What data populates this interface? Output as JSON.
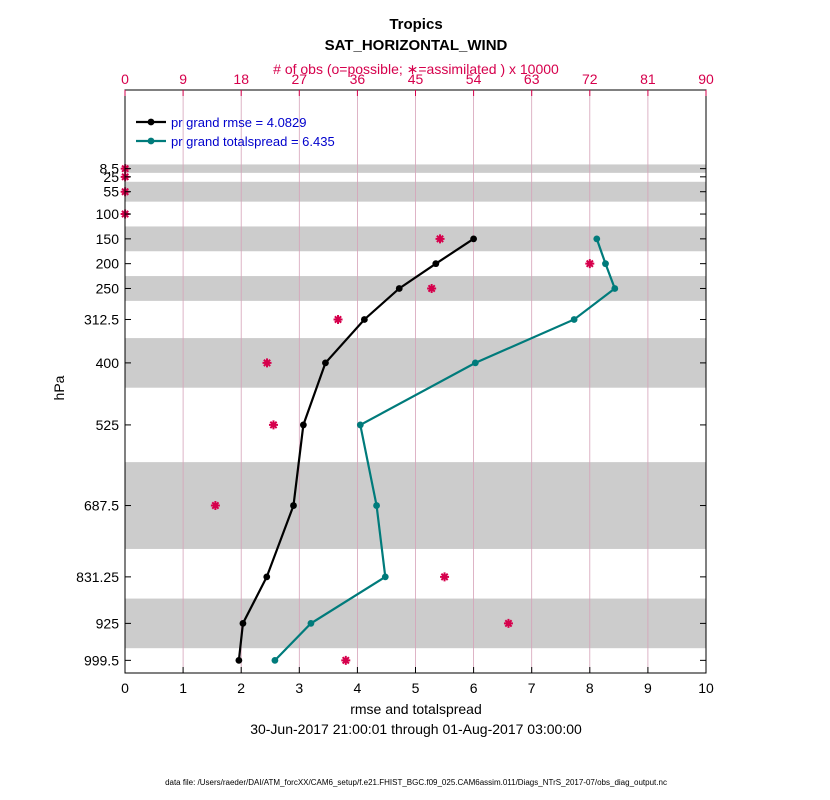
{
  "chart_data": {
    "type": "line",
    "title": "Tropics",
    "subtitle": "SAT_HORIZONTAL_WIND",
    "xlabel": "rmse and totalspread",
    "ylabel": "hPa",
    "date_range": "30-Jun-2017 21:00:01 through 01-Aug-2017 03:00:00",
    "footer": "data file: /Users/raeder/DAI/ATM_forcXX/CAM6_setup/f.e21.FHIST_BGC.f09_025.CAM6assim.011/Diags_NTrS_2017-07/obs_diag_output.nc",
    "top_axis_label": "# of obs (o=possible; ∗=assimilated ) x 10000",
    "xlim": [
      0,
      10
    ],
    "x_ticks": [
      "0",
      "1",
      "2",
      "3",
      "4",
      "5",
      "6",
      "7",
      "8",
      "9",
      "10"
    ],
    "top_xlim": [
      0,
      90
    ],
    "top_ticks": [
      "0",
      "9",
      "18",
      "27",
      "36",
      "45",
      "54",
      "63",
      "72",
      "81",
      "90"
    ],
    "ylim_hpa": [
      1025,
      -150
    ],
    "levels": [
      8.5,
      25,
      55,
      100,
      150,
      200,
      250,
      312.5,
      400,
      525,
      687.5,
      831.25,
      925,
      999.5
    ],
    "level_labels": [
      "8.5",
      "25",
      "55",
      "100",
      "150",
      "200",
      "250",
      "312.5",
      "400",
      "525",
      "687.5",
      "831.25",
      "925",
      "999.5"
    ],
    "layer_bands_hpa": [
      [
        0,
        17
      ],
      [
        35,
        75
      ],
      [
        125,
        175
      ],
      [
        225,
        275
      ],
      [
        350,
        450
      ],
      [
        600,
        775
      ],
      [
        875,
        975
      ]
    ],
    "series": [
      {
        "name": "rmse",
        "legend": "pr grand rmse = 4.0829",
        "color": "#000000",
        "levels": [
          150,
          200,
          250,
          312.5,
          400,
          525,
          687.5,
          831.25,
          925,
          999.5
        ],
        "values": [
          6.0,
          5.35,
          4.72,
          4.12,
          3.45,
          3.07,
          2.9,
          2.44,
          2.03,
          1.96
        ]
      },
      {
        "name": "totalspread",
        "legend": "pr grand totalspread = 6.435",
        "color": "#007b7b",
        "levels": [
          150,
          200,
          250,
          312.5,
          400,
          525,
          687.5,
          831.25,
          925,
          999.5
        ],
        "values": [
          8.12,
          8.27,
          8.43,
          7.73,
          6.03,
          4.05,
          4.33,
          4.48,
          3.2,
          2.58
        ]
      }
    ],
    "obs_assimilated_x10000": {
      "color": "#d6004c",
      "levels": [
        8.5,
        25,
        55,
        100,
        150,
        200,
        250,
        312.5,
        400,
        525,
        687.5,
        831.25,
        925,
        999.5
      ],
      "values": [
        0.03,
        0.03,
        0.02,
        0.02,
        48.8,
        72.0,
        47.5,
        33.0,
        22.0,
        23.0,
        14.0,
        49.5,
        59.4,
        34.2
      ]
    }
  }
}
